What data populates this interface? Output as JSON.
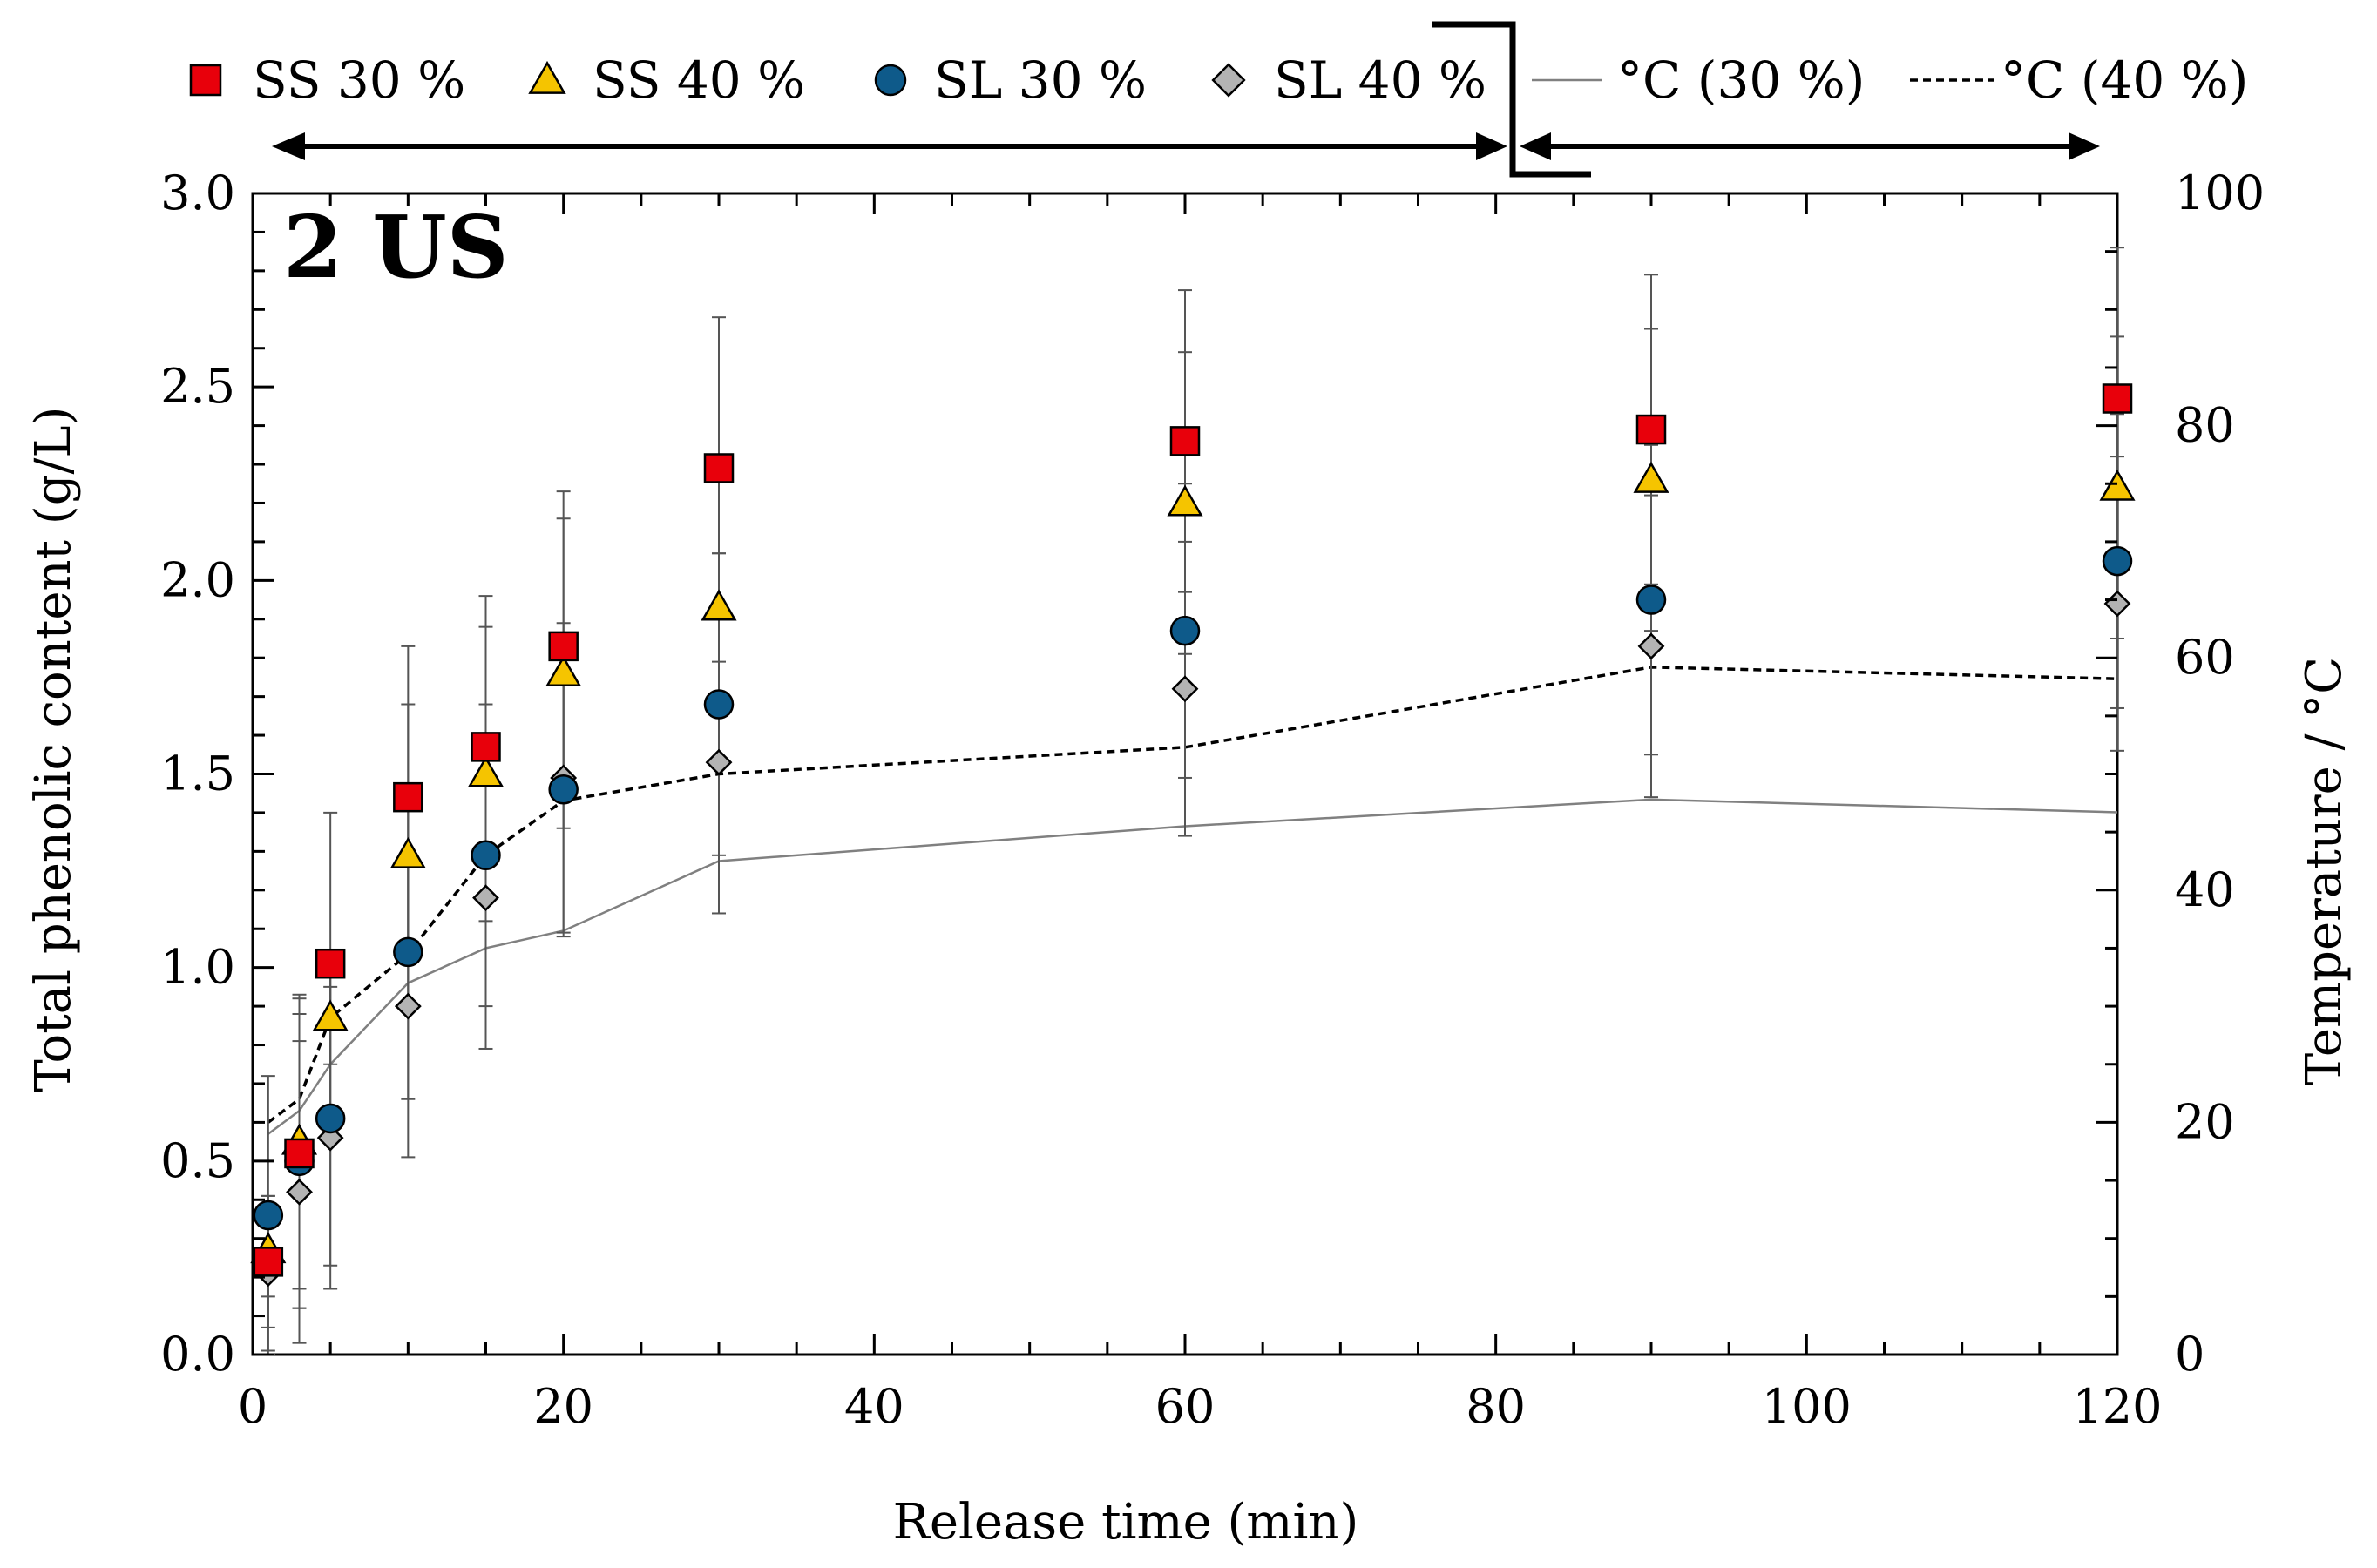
{
  "chart_data": {
    "type": "scatter",
    "panel_label": "2 US",
    "xlabel": "Release time (min)",
    "ylabel": "Total phenolic content (g/L)",
    "y2label": "Temperature / °C",
    "xlim": [
      0,
      120
    ],
    "ylim": [
      0,
      3.0
    ],
    "y2lim": [
      0,
      100
    ],
    "x_ticks": [
      0,
      20,
      40,
      60,
      80,
      100,
      120
    ],
    "y_ticks": [
      0.0,
      0.5,
      1.0,
      1.5,
      2.0,
      2.5,
      3.0
    ],
    "y_tick_labels": [
      "0.0",
      "0.5",
      "1.0",
      "1.5",
      "2.0",
      "2.5",
      "3.0"
    ],
    "y2_ticks": [
      0,
      20,
      40,
      60,
      80,
      100
    ],
    "grid": false,
    "legend_position": "top",
    "x": [
      1,
      3,
      5,
      10,
      15,
      20,
      30,
      60,
      90,
      120
    ],
    "series": [
      {
        "name": "SS 30 %",
        "axis": "left",
        "marker": "square",
        "color": "#e8000b",
        "values": [
          0.24,
          0.52,
          1.01,
          1.44,
          1.57,
          1.83,
          2.29,
          2.36,
          2.39,
          2.47
        ],
        "errors": [
          0.17,
          0.4,
          0.39,
          0.39,
          0.39,
          0.4,
          0.39,
          0.39,
          0.4,
          0.39
        ]
      },
      {
        "name": "SS 40 %",
        "axis": "left",
        "marker": "triangle",
        "color": "#f5c400",
        "values": [
          0.27,
          0.55,
          0.87,
          1.29,
          1.5,
          1.76,
          1.93,
          2.2,
          2.26,
          2.24
        ],
        "errors": [
          0.12,
          0.38,
          0.12,
          0.39,
          0.38,
          0.4,
          0.14,
          0.39,
          0.39,
          0.39
        ]
      },
      {
        "name": "SL 30 %",
        "axis": "left",
        "marker": "circle",
        "color": "#0e5a8a",
        "values": [
          0.36,
          0.5,
          0.61,
          1.04,
          1.29,
          1.46,
          1.68,
          1.87,
          1.95,
          2.05
        ],
        "errors": [
          0.36,
          0.38,
          0.38,
          0.38,
          0.39,
          0.38,
          0.39,
          0.38,
          0.4,
          0.38
        ]
      },
      {
        "name": "SL 40 %",
        "axis": "left",
        "marker": "diamond",
        "color": "#b3b3b3",
        "values": [
          0.21,
          0.42,
          0.56,
          0.9,
          1.18,
          1.49,
          1.53,
          1.72,
          1.83,
          1.94
        ],
        "errors": [
          0.2,
          0.39,
          0.39,
          0.39,
          0.39,
          0.4,
          0.39,
          0.38,
          0.39,
          0.38
        ]
      },
      {
        "name": "°C (30 %)",
        "axis": "right",
        "style": "solid",
        "color": "#808080",
        "values": [
          19,
          21,
          25,
          32,
          35,
          36.5,
          42.5,
          45.5,
          47.8,
          46.7
        ]
      },
      {
        "name": "°C (40 %)",
        "axis": "right",
        "style": "dashed",
        "color": "#000000",
        "values": [
          20,
          22,
          29,
          34.5,
          43,
          47.7,
          50,
          52.3,
          59.2,
          58.2
        ]
      }
    ]
  }
}
